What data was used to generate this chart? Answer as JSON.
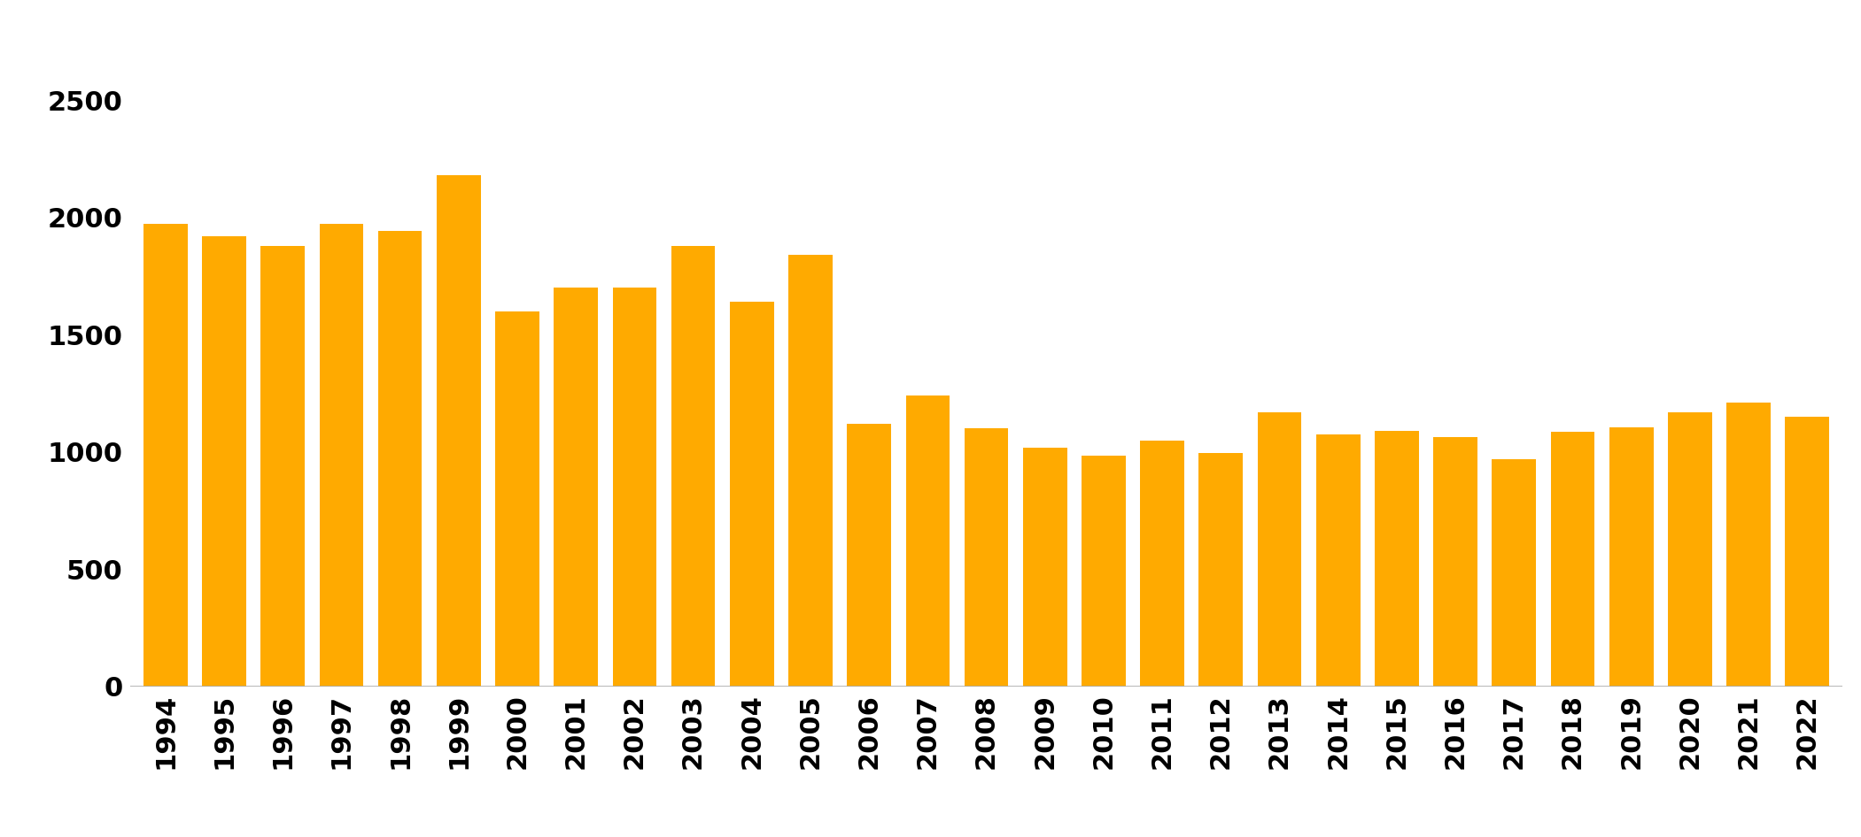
{
  "years": [
    "1994",
    "1995",
    "1996",
    "1997",
    "1998",
    "1999",
    "2000",
    "2001",
    "2002",
    "2003",
    "2004",
    "2005",
    "2006",
    "2007",
    "2008",
    "2009",
    "2010",
    "2011",
    "2012",
    "2013",
    "2014",
    "2015",
    "2016",
    "2017",
    "2018",
    "2019",
    "2020",
    "2021",
    "2022"
  ],
  "values": [
    1975,
    1920,
    1880,
    1975,
    1945,
    2180,
    1600,
    1700,
    1700,
    1880,
    1640,
    1840,
    1120,
    1240,
    1100,
    1020,
    985,
    1050,
    995,
    1170,
    1075,
    1090,
    1065,
    970,
    1085,
    1105,
    1170,
    1210,
    1150
  ],
  "bar_color": "#FFAA00",
  "background_color": "#FFFFFF",
  "ylim": [
    0,
    2500
  ],
  "yticks": [
    0,
    500,
    1000,
    1500,
    2000,
    2500
  ],
  "bar_width": 0.75,
  "tick_fontsize": 22,
  "bottom_line_color": "#AAAAAA"
}
